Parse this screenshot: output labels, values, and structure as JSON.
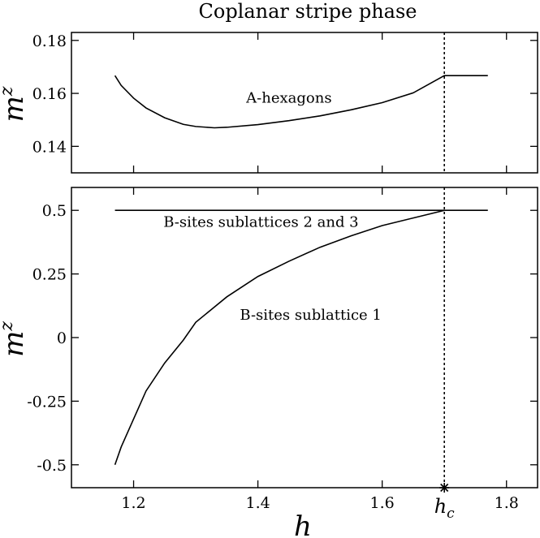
{
  "chart_data": [
    {
      "type": "line",
      "title": "Coplanar stripe phase",
      "ylabel": "m^z",
      "xlim": [
        1.1,
        1.85
      ],
      "ylim": [
        0.13,
        0.183
      ],
      "yticks": [
        0.14,
        0.16,
        0.18
      ],
      "ytick_labels": [
        "0.14",
        "0.16",
        "0.18"
      ],
      "series": [
        {
          "x": [
            1.17,
            1.18,
            1.2,
            1.22,
            1.25,
            1.28,
            1.3,
            1.33,
            1.35,
            1.4,
            1.45,
            1.5,
            1.55,
            1.6,
            1.65,
            1.7,
            1.77
          ],
          "y": [
            0.1667,
            0.163,
            0.1582,
            0.1545,
            0.1508,
            0.1483,
            0.1475,
            0.147,
            0.1472,
            0.1482,
            0.1497,
            0.1515,
            0.1538,
            0.1565,
            0.1602,
            0.1667,
            0.1667
          ]
        }
      ],
      "annotations": [
        {
          "text": "A-hexagons",
          "x": 1.45,
          "y": 0.1565
        }
      ],
      "vline_x": 1.7
    },
    {
      "type": "line",
      "xlabel": "h",
      "ylabel": "m^z",
      "xlim": [
        1.1,
        1.85
      ],
      "ylim": [
        -0.59,
        0.59
      ],
      "xticks": [
        1.2,
        1.4,
        1.6,
        1.8
      ],
      "xtick_labels": [
        "1.2",
        "1.4",
        "1.6",
        "1.8"
      ],
      "yticks": [
        0.5,
        0.25,
        0,
        -0.25,
        -0.5
      ],
      "ytick_labels": [
        "0.5",
        "0.25",
        "0",
        "-0.25",
        "-0.5"
      ],
      "series": [
        {
          "x": [
            1.17,
            1.77
          ],
          "y": [
            0.5,
            0.5
          ]
        },
        {
          "x": [
            1.17,
            1.18,
            1.2,
            1.22,
            1.25,
            1.28,
            1.3,
            1.35,
            1.4,
            1.45,
            1.5,
            1.55,
            1.6,
            1.65,
            1.7
          ],
          "y": [
            -0.5,
            -0.43,
            -0.32,
            -0.21,
            -0.1,
            -0.01,
            0.06,
            0.16,
            0.24,
            0.3,
            0.355,
            0.4,
            0.44,
            0.47,
            0.5
          ]
        }
      ],
      "annotations": [
        {
          "text": "B-sites sublattices 2 and 3",
          "x": 1.405,
          "y": 0.435
        },
        {
          "text": "B-sites sublattice 1",
          "x": 1.485,
          "y": 0.07
        }
      ],
      "vline_x": 1.7,
      "marker": {
        "x": 1.7,
        "label": "h_c"
      }
    }
  ]
}
